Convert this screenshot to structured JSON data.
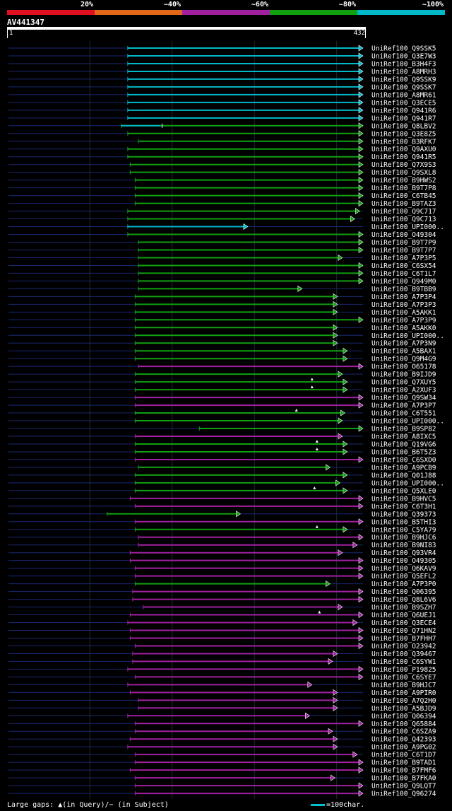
{
  "legend": {
    "items": [
      {
        "label": "20%",
        "color": "#e01020"
      },
      {
        "label": "~40%",
        "color": "#e06818"
      },
      {
        "label": "~60%",
        "color": "#a020a0"
      },
      {
        "label": "~80%",
        "color": "#10a010"
      },
      {
        "label": "~100%",
        "color": "#00b8c8"
      }
    ]
  },
  "query": {
    "name": "AV441347",
    "length": 432,
    "ruler_start": "1",
    "ruler_end": "432"
  },
  "footer": {
    "gaps_text": "Large gaps: ▲(in Query)/− (in Subject)",
    "scale_text": "=100char."
  },
  "chart_data": {
    "type": "alignment-map",
    "x_range": [
      1,
      432
    ],
    "color_classes": {
      "c": "~100%",
      "g": "~80%",
      "m": "~60%"
    },
    "hits": [
      {
        "name": "UniRef100_Q9SSK5",
        "start": 146,
        "end": 432,
        "cls": "c"
      },
      {
        "name": "UniRef100_Q3E7W3",
        "start": 146,
        "end": 432,
        "cls": "c"
      },
      {
        "name": "UniRef100_B3H4F3",
        "start": 146,
        "end": 432,
        "cls": "c"
      },
      {
        "name": "UniRef100_A8MRH3",
        "start": 146,
        "end": 432,
        "cls": "c"
      },
      {
        "name": "UniRef100_Q9SSK9",
        "start": 146,
        "end": 432,
        "cls": "c"
      },
      {
        "name": "UniRef100_Q9SSK7",
        "start": 146,
        "end": 432,
        "cls": "c"
      },
      {
        "name": "UniRef100_A8MR61",
        "start": 146,
        "end": 432,
        "cls": "c"
      },
      {
        "name": "UniRef100_Q3ECE5",
        "start": 146,
        "end": 432,
        "cls": "c"
      },
      {
        "name": "UniRef100_Q941R6",
        "start": 146,
        "end": 432,
        "cls": "c"
      },
      {
        "name": "UniRef100_Q941R7",
        "start": 146,
        "end": 432,
        "cls": "c"
      },
      {
        "name": "UniRef100_Q8LBV2",
        "start": 138,
        "end": 432,
        "cls": "g",
        "cyan_end": 186
      },
      {
        "name": "UniRef100_Q3E8Z5",
        "start": 146,
        "end": 432,
        "cls": "g"
      },
      {
        "name": "UniRef100_B3RFK7",
        "start": 159,
        "end": 432,
        "cls": "g"
      },
      {
        "name": "UniRef100_Q9AXU0",
        "start": 146,
        "end": 432,
        "cls": "g"
      },
      {
        "name": "UniRef100_Q941R5",
        "start": 146,
        "end": 432,
        "cls": "g"
      },
      {
        "name": "UniRef100_Q7X9S3",
        "start": 149,
        "end": 432,
        "cls": "g"
      },
      {
        "name": "UniRef100_Q9SXL8",
        "start": 149,
        "end": 432,
        "cls": "g"
      },
      {
        "name": "UniRef100_B9HWS2",
        "start": 155,
        "end": 432,
        "cls": "g"
      },
      {
        "name": "UniRef100_B9T7P8",
        "start": 155,
        "end": 432,
        "cls": "g"
      },
      {
        "name": "UniRef100_C6TB45",
        "start": 155,
        "end": 432,
        "cls": "g"
      },
      {
        "name": "UniRef100_B9TAZ3",
        "start": 155,
        "end": 432,
        "cls": "g"
      },
      {
        "name": "UniRef100_Q9C717",
        "start": 146,
        "end": 428,
        "cls": "g"
      },
      {
        "name": "UniRef100_Q9C713",
        "start": 146,
        "end": 422,
        "cls": "g"
      },
      {
        "name": "UniRef100_UPI000..",
        "start": 146,
        "end": 292,
        "cls": "c"
      },
      {
        "name": "UniRef100_O49304",
        "start": 146,
        "end": 432,
        "cls": "g"
      },
      {
        "name": "UniRef100_B9T7P9",
        "start": 159,
        "end": 432,
        "cls": "g"
      },
      {
        "name": "UniRef100_B9T7P7",
        "start": 159,
        "end": 432,
        "cls": "g"
      },
      {
        "name": "UniRef100_A7P3P5",
        "start": 159,
        "end": 407,
        "cls": "g"
      },
      {
        "name": "UniRef100_C6SX54",
        "start": 159,
        "end": 432,
        "cls": "g"
      },
      {
        "name": "UniRef100_C6T1L7",
        "start": 159,
        "end": 432,
        "cls": "g"
      },
      {
        "name": "UniRef100_Q949M0",
        "start": 159,
        "end": 432,
        "cls": "g"
      },
      {
        "name": "UniRef100_B9TBB9",
        "start": 159,
        "end": 358,
        "cls": "g"
      },
      {
        "name": "UniRef100_A7P3P4",
        "start": 155,
        "end": 401,
        "cls": "g"
      },
      {
        "name": "UniRef100_A7P3P3",
        "start": 155,
        "end": 401,
        "cls": "g"
      },
      {
        "name": "UniRef100_A5AKK1",
        "start": 155,
        "end": 401,
        "cls": "g"
      },
      {
        "name": "UniRef100_A7P3P9",
        "start": 155,
        "end": 432,
        "cls": "g"
      },
      {
        "name": "UniRef100_A5AKK0",
        "start": 155,
        "end": 401,
        "cls": "g"
      },
      {
        "name": "UniRef100_UPI000..",
        "start": 155,
        "end": 401,
        "cls": "g"
      },
      {
        "name": "UniRef100_A7P3N9",
        "start": 155,
        "end": 401,
        "cls": "g"
      },
      {
        "name": "UniRef100_A5BAX1",
        "start": 155,
        "end": 413,
        "cls": "g"
      },
      {
        "name": "UniRef100_Q9M4G9",
        "start": 155,
        "end": 413,
        "cls": "g"
      },
      {
        "name": "UniRef100_O65178",
        "start": 159,
        "end": 432,
        "cls": "m"
      },
      {
        "name": "UniRef100_B9IJD9",
        "start": 155,
        "end": 407,
        "cls": "g"
      },
      {
        "name": "UniRef100_Q7XUY5",
        "start": 155,
        "end": 413,
        "cls": "g",
        "qgap": 370
      },
      {
        "name": "UniRef100_A2XUF3",
        "start": 155,
        "end": 413,
        "cls": "g",
        "qgap": 370
      },
      {
        "name": "UniRef100_Q9SW34",
        "start": 155,
        "end": 432,
        "cls": "m"
      },
      {
        "name": "UniRef100_A7P3P7",
        "start": 155,
        "end": 432,
        "cls": "m"
      },
      {
        "name": "UniRef100_C6T551",
        "start": 155,
        "end": 410,
        "cls": "g",
        "qgap": 351
      },
      {
        "name": "UniRef100_UPI000..",
        "start": 155,
        "end": 407,
        "cls": "g"
      },
      {
        "name": "UniRef100_B9SP82",
        "start": 233,
        "end": 432,
        "cls": "g"
      },
      {
        "name": "UniRef100_A8IXC5",
        "start": 155,
        "end": 407,
        "cls": "m"
      },
      {
        "name": "UniRef100_Q19VG6",
        "start": 155,
        "end": 413,
        "cls": "g",
        "qgap": 376
      },
      {
        "name": "UniRef100_B6T5Z3",
        "start": 155,
        "end": 413,
        "cls": "g",
        "qgap": 376
      },
      {
        "name": "UniRef100_C6SXD0",
        "start": 155,
        "end": 432,
        "cls": "m"
      },
      {
        "name": "UniRef100_A9PCB9",
        "start": 159,
        "end": 392,
        "cls": "g"
      },
      {
        "name": "UniRef100_Q01J88",
        "start": 155,
        "end": 413,
        "cls": "g"
      },
      {
        "name": "UniRef100_UPI000..",
        "start": 155,
        "end": 404,
        "cls": "g"
      },
      {
        "name": "UniRef100_Q5XLE0",
        "start": 155,
        "end": 413,
        "cls": "g",
        "qgap": 373
      },
      {
        "name": "UniRef100_B9HVC5",
        "start": 149,
        "end": 432,
        "cls": "m"
      },
      {
        "name": "UniRef100_C6T3H1",
        "start": 155,
        "end": 432,
        "cls": "m"
      },
      {
        "name": "UniRef100_Q39373",
        "start": 121,
        "end": 283,
        "cls": "g"
      },
      {
        "name": "UniRef100_B5THI3",
        "start": 155,
        "end": 432,
        "cls": "m"
      },
      {
        "name": "UniRef100_C5YA79",
        "start": 155,
        "end": 413,
        "cls": "g",
        "qgap": 376
      },
      {
        "name": "UniRef100_B9HJC6",
        "start": 159,
        "end": 432,
        "cls": "m"
      },
      {
        "name": "UniRef100_B9NI83",
        "start": 159,
        "end": 425,
        "cls": "m"
      },
      {
        "name": "UniRef100_Q93VR4",
        "start": 149,
        "end": 407,
        "cls": "m"
      },
      {
        "name": "UniRef100_O49305",
        "start": 149,
        "end": 432,
        "cls": "m"
      },
      {
        "name": "UniRef100_Q6KAV9",
        "start": 155,
        "end": 432,
        "cls": "m"
      },
      {
        "name": "UniRef100_Q5EFL2",
        "start": 155,
        "end": 432,
        "cls": "m"
      },
      {
        "name": "UniRef100_A7P3P0",
        "start": 155,
        "end": 392,
        "cls": "g"
      },
      {
        "name": "UniRef100_Q06395",
        "start": 152,
        "end": 432,
        "cls": "m"
      },
      {
        "name": "UniRef100_Q8L6V6",
        "start": 152,
        "end": 432,
        "cls": "m"
      },
      {
        "name": "UniRef100_B9SZH7",
        "start": 165,
        "end": 407,
        "cls": "m"
      },
      {
        "name": "UniRef100_Q6UEJ1",
        "start": 149,
        "end": 432,
        "cls": "m",
        "qgap": 379
      },
      {
        "name": "UniRef100_Q3ECE4",
        "start": 146,
        "end": 425,
        "cls": "m"
      },
      {
        "name": "UniRef100_Q71HN2",
        "start": 149,
        "end": 432,
        "cls": "m"
      },
      {
        "name": "UniRef100_B7FHH7",
        "start": 149,
        "end": 432,
        "cls": "m"
      },
      {
        "name": "UniRef100_O23942",
        "start": 155,
        "end": 432,
        "cls": "m"
      },
      {
        "name": "UniRef100_Q39467",
        "start": 152,
        "end": 401,
        "cls": "m"
      },
      {
        "name": "UniRef100_C6SYW1",
        "start": 152,
        "end": 395,
        "cls": "m"
      },
      {
        "name": "UniRef100_P19825",
        "start": 146,
        "end": 432,
        "cls": "m"
      },
      {
        "name": "UniRef100_C6SYE7",
        "start": 155,
        "end": 432,
        "cls": "m"
      },
      {
        "name": "UniRef100_B9HJC7",
        "start": 146,
        "end": 370,
        "cls": "m"
      },
      {
        "name": "UniRef100_A9PIR0",
        "start": 149,
        "end": 401,
        "cls": "m"
      },
      {
        "name": "UniRef100_A7Q2H0",
        "start": 159,
        "end": 401,
        "cls": "m"
      },
      {
        "name": "UniRef100_A5BJD9",
        "start": 159,
        "end": 401,
        "cls": "m"
      },
      {
        "name": "UniRef100_Q06394",
        "start": 146,
        "end": 367,
        "cls": "m"
      },
      {
        "name": "UniRef100_Q65884",
        "start": 155,
        "end": 432,
        "cls": "m"
      },
      {
        "name": "UniRef100_C6SZA9",
        "start": 155,
        "end": 395,
        "cls": "m"
      },
      {
        "name": "UniRef100_Q42393",
        "start": 149,
        "end": 401,
        "cls": "m"
      },
      {
        "name": "UniRef100_A9PG02",
        "start": 146,
        "end": 401,
        "cls": "m"
      },
      {
        "name": "UniRef100_C6T1D7",
        "start": 155,
        "end": 425,
        "cls": "m"
      },
      {
        "name": "UniRef100_B9TAD1",
        "start": 155,
        "end": 432,
        "cls": "m"
      },
      {
        "name": "UniRef100_B7FMF6",
        "start": 149,
        "end": 432,
        "cls": "m"
      },
      {
        "name": "UniRef100_B7FKA0",
        "start": 155,
        "end": 398,
        "cls": "m"
      },
      {
        "name": "UniRef100_Q9LQT7",
        "start": 155,
        "end": 432,
        "cls": "m"
      },
      {
        "name": "UniRef100_Q96274",
        "start": 155,
        "end": 432,
        "cls": "m"
      }
    ]
  }
}
